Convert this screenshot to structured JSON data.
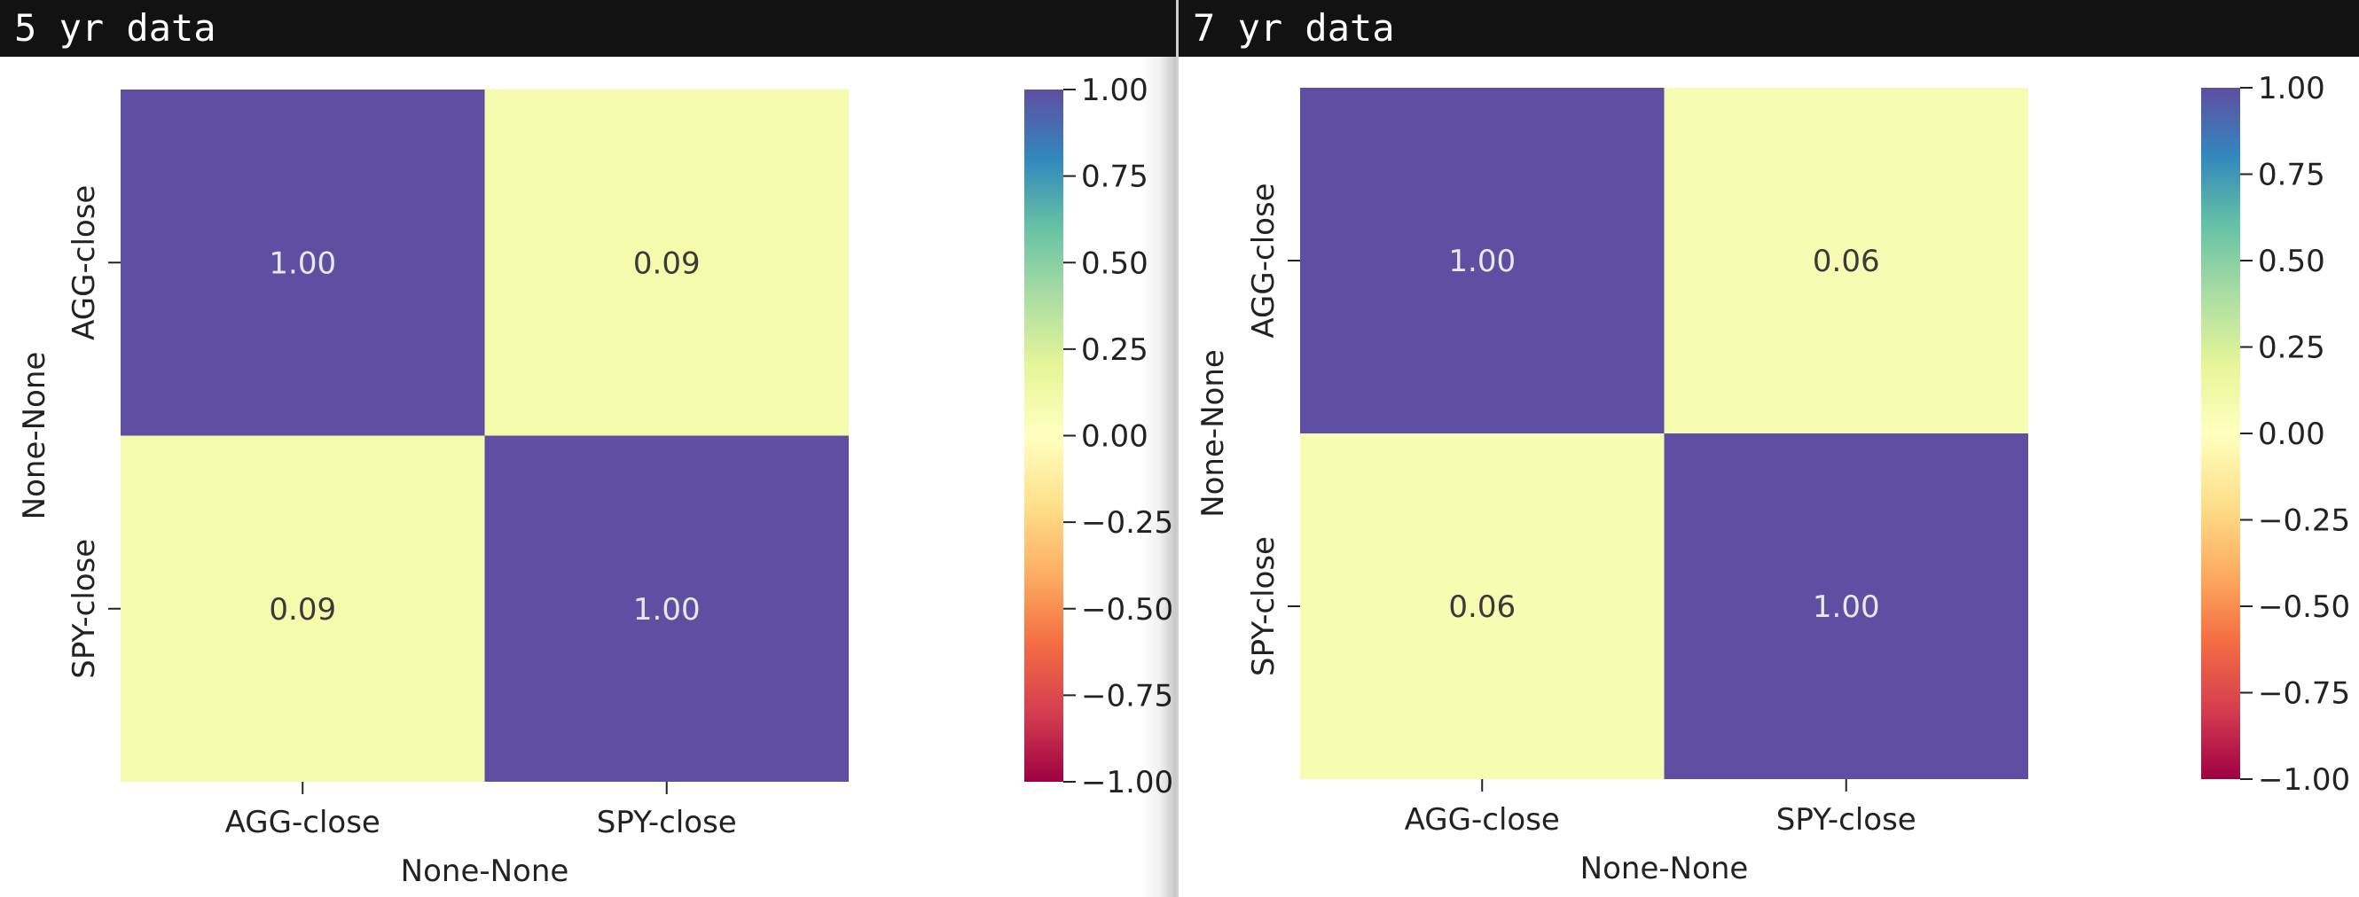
{
  "panels": [
    {
      "title": "5 yr data"
    },
    {
      "title": "7 yr data"
    }
  ],
  "chart_data": [
    {
      "type": "heatmap",
      "title": "5 yr data",
      "xlabel": "None-None",
      "ylabel": "None-None",
      "x_categories": [
        "AGG-close",
        "SPY-close"
      ],
      "y_categories": [
        "AGG-close",
        "SPY-close"
      ],
      "values": [
        [
          1.0,
          0.09
        ],
        [
          0.09,
          1.0
        ]
      ],
      "annotations": [
        [
          "1.00",
          "0.09"
        ],
        [
          "0.09",
          "1.00"
        ]
      ],
      "colormap": "Spectral",
      "vmin": -1.0,
      "vmax": 1.0,
      "colorbar_ticks": [
        "1.00",
        "0.75",
        "0.50",
        "0.25",
        "0.00",
        "−0.25",
        "−0.50",
        "−0.75",
        "−1.00"
      ]
    },
    {
      "type": "heatmap",
      "title": "7 yr data",
      "xlabel": "None-None",
      "ylabel": "None-None",
      "x_categories": [
        "AGG-close",
        "SPY-close"
      ],
      "y_categories": [
        "AGG-close",
        "SPY-close"
      ],
      "values": [
        [
          1.0,
          0.06
        ],
        [
          0.06,
          1.0
        ]
      ],
      "annotations": [
        [
          "1.00",
          "0.06"
        ],
        [
          "0.06",
          "1.00"
        ]
      ],
      "colormap": "Spectral",
      "vmin": -1.0,
      "vmax": 1.0,
      "colorbar_ticks": [
        "1.00",
        "0.75",
        "0.50",
        "0.25",
        "0.00",
        "−0.25",
        "−0.50",
        "−0.75",
        "−1.00"
      ]
    }
  ]
}
